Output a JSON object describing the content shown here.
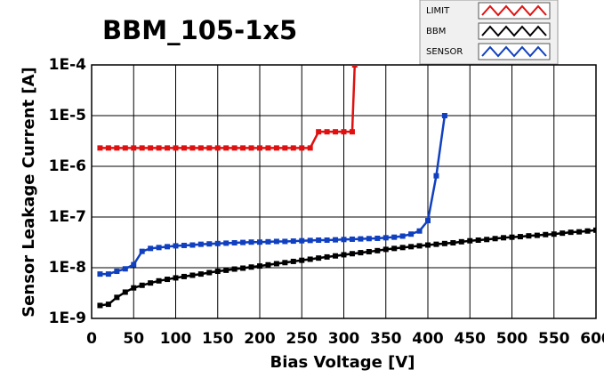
{
  "chart_data": {
    "type": "line",
    "title": "BBM_105-1x5",
    "x_label": "Bias Voltage [V]",
    "y_label": "Sensor Leakage Current [A]",
    "log_y": true,
    "grid": true,
    "xlim": [
      0,
      600
    ],
    "xticks": [
      0,
      50,
      100,
      150,
      200,
      250,
      300,
      350,
      400,
      450,
      500,
      550,
      600
    ],
    "ylim": [
      1e-09,
      0.0001
    ],
    "yticks": [
      {
        "value": 1e-09,
        "label": "1E-9"
      },
      {
        "value": 1e-08,
        "label": "1E-8"
      },
      {
        "value": 1e-07,
        "label": "1E-7"
      },
      {
        "value": 1e-06,
        "label": "1E-6"
      },
      {
        "value": 1e-05,
        "label": "1E-5"
      },
      {
        "value": 0.0001,
        "label": "1E-4"
      }
    ],
    "series": [
      {
        "name": "LIMIT",
        "color": "#e01010",
        "x": [
          10,
          20,
          30,
          40,
          50,
          60,
          70,
          80,
          90,
          100,
          110,
          120,
          130,
          140,
          150,
          160,
          170,
          180,
          190,
          200,
          210,
          220,
          230,
          240,
          250,
          260,
          270,
          280,
          290,
          300,
          310,
          313
        ],
        "values": [
          2.3e-06,
          2.3e-06,
          2.3e-06,
          2.3e-06,
          2.3e-06,
          2.3e-06,
          2.3e-06,
          2.3e-06,
          2.3e-06,
          2.3e-06,
          2.3e-06,
          2.3e-06,
          2.3e-06,
          2.3e-06,
          2.3e-06,
          2.3e-06,
          2.3e-06,
          2.3e-06,
          2.3e-06,
          2.3e-06,
          2.3e-06,
          2.3e-06,
          2.3e-06,
          2.3e-06,
          2.3e-06,
          2.3e-06,
          4.8e-06,
          4.8e-06,
          4.8e-06,
          4.8e-06,
          4.8e-06,
          0.0001
        ]
      },
      {
        "name": "BBM",
        "color": "#000000",
        "x": [
          10,
          20,
          30,
          40,
          50,
          60,
          70,
          80,
          90,
          100,
          110,
          120,
          130,
          140,
          150,
          160,
          170,
          180,
          190,
          200,
          210,
          220,
          230,
          240,
          250,
          260,
          270,
          280,
          290,
          300,
          310,
          320,
          330,
          340,
          350,
          360,
          370,
          380,
          390,
          400,
          410,
          420,
          430,
          440,
          450,
          460,
          470,
          480,
          490,
          500,
          510,
          520,
          530,
          540,
          550,
          560,
          570,
          580,
          590,
          600
        ],
        "values": [
          1.8e-09,
          1.9e-09,
          2.6e-09,
          3.3e-09,
          4e-09,
          4.5e-09,
          5e-09,
          5.5e-09,
          5.9e-09,
          6.3e-09,
          6.7e-09,
          7.1e-09,
          7.5e-09,
          8e-09,
          8.5e-09,
          8.9e-09,
          9.4e-09,
          9.8e-09,
          1.03e-08,
          1.08e-08,
          1.14e-08,
          1.2e-08,
          1.26e-08,
          1.33e-08,
          1.4e-08,
          1.47e-08,
          1.55e-08,
          1.63e-08,
          1.71e-08,
          1.8e-08,
          1.89e-08,
          1.98e-08,
          2.07e-08,
          2.17e-08,
          2.3e-08,
          2.4e-08,
          2.5e-08,
          2.6e-08,
          2.7e-08,
          2.8e-08,
          2.9e-08,
          3e-08,
          3.1e-08,
          3.25e-08,
          3.4e-08,
          3.5e-08,
          3.6e-08,
          3.75e-08,
          3.9e-08,
          4e-08,
          4.1e-08,
          4.25e-08,
          4.35e-08,
          4.5e-08,
          4.6e-08,
          4.8e-08,
          5e-08,
          5.1e-08,
          5.3e-08,
          5.5e-08
        ]
      },
      {
        "name": "SENSOR",
        "color": "#1040c0",
        "x": [
          10,
          20,
          30,
          40,
          50,
          60,
          70,
          80,
          90,
          100,
          110,
          120,
          130,
          140,
          150,
          160,
          170,
          180,
          190,
          200,
          210,
          220,
          230,
          240,
          250,
          260,
          270,
          280,
          290,
          300,
          310,
          320,
          330,
          340,
          350,
          360,
          370,
          380,
          390,
          400,
          410,
          420
        ],
        "values": [
          7.5e-09,
          7.5e-09,
          8.5e-09,
          9.5e-09,
          1.15e-08,
          2.1e-08,
          2.4e-08,
          2.5e-08,
          2.6e-08,
          2.7e-08,
          2.75e-08,
          2.8e-08,
          2.9e-08,
          2.95e-08,
          3e-08,
          3.05e-08,
          3.1e-08,
          3.15e-08,
          3.2e-08,
          3.2e-08,
          3.25e-08,
          3.3e-08,
          3.3e-08,
          3.35e-08,
          3.4e-08,
          3.45e-08,
          3.5e-08,
          3.5e-08,
          3.55e-08,
          3.6e-08,
          3.65e-08,
          3.7e-08,
          3.75e-08,
          3.8e-08,
          3.9e-08,
          4e-08,
          4.2e-08,
          4.6e-08,
          5.3e-08,
          8.5e-08,
          6.5e-07,
          1e-05
        ]
      }
    ]
  }
}
